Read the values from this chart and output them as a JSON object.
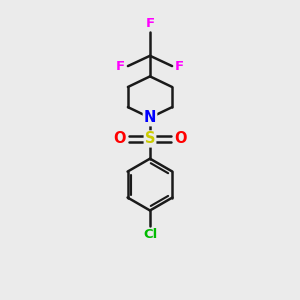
{
  "background_color": "#ebebeb",
  "bond_color": "#1a1a1a",
  "bond_width": 1.8,
  "N_color": "#0000ff",
  "S_color": "#cccc00",
  "O_color": "#ff0000",
  "F_color": "#ff00ff",
  "Cl_color": "#00bb00",
  "figsize": [
    3.0,
    3.0
  ],
  "dpi": 100,
  "xlim": [
    0,
    10
  ],
  "ylim": [
    0,
    10
  ]
}
